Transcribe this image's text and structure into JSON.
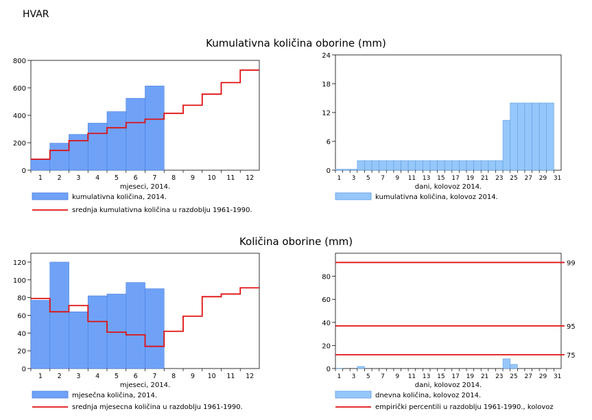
{
  "station": "HVAR",
  "section1_title": "Kumulativna količina oborine (mm)",
  "section2_title": "Količina oborine (mm)",
  "colors": {
    "monthly_bar": "#6fa2f7",
    "monthly_bar_edge": "#4a7ee0",
    "daily_bar": "#96c7fa",
    "daily_bar_edge": "#5e9de0",
    "reference_line": "#e01010"
  },
  "chart_data": [
    {
      "type": "bar",
      "xlabel": "mjeseci, 2014.",
      "x_ticks": [
        1,
        2,
        3,
        4,
        5,
        6,
        7,
        8,
        9,
        10,
        11,
        12
      ],
      "ylim": [
        0,
        800
      ],
      "y_ticks": [
        0,
        200,
        400,
        600,
        800
      ],
      "series": [
        {
          "name": "kumulativna količina, 2014.",
          "kind": "bar",
          "categories": [
            1,
            2,
            3,
            4,
            5,
            6,
            7
          ],
          "values": [
            77,
            197,
            261,
            343,
            427,
            524,
            614
          ]
        },
        {
          "name": "srednja kumulativna količina u razdoblju 1961-1990.",
          "kind": "step",
          "categories": [
            1,
            2,
            3,
            4,
            5,
            6,
            7,
            8,
            9,
            10,
            11,
            12
          ],
          "values": [
            80,
            144,
            215,
            268,
            309,
            347,
            372,
            414,
            473,
            554,
            638,
            729
          ]
        }
      ]
    },
    {
      "type": "bar",
      "xlabel": "dani, kolovoz 2014.",
      "x_ticks": [
        1,
        3,
        5,
        7,
        9,
        11,
        13,
        15,
        17,
        19,
        21,
        23,
        25,
        27,
        29,
        31
      ],
      "ylim": [
        0,
        24
      ],
      "y_ticks": [
        0,
        6,
        12,
        18,
        24
      ],
      "series": [
        {
          "name": "kumulativna količina, kolovoz 2014.",
          "kind": "bar",
          "categories": [
            1,
            2,
            3,
            4,
            5,
            6,
            7,
            8,
            9,
            10,
            11,
            12,
            13,
            14,
            15,
            16,
            17,
            18,
            19,
            20,
            21,
            22,
            23,
            24,
            25,
            26,
            27,
            28,
            29,
            30
          ],
          "values": [
            0.2,
            0.2,
            0.2,
            2,
            2,
            2,
            2,
            2,
            2,
            2,
            2,
            2,
            2,
            2,
            2,
            2,
            2,
            2,
            2,
            2,
            2,
            2,
            2,
            10.4,
            14,
            14,
            14,
            14,
            14,
            14
          ]
        }
      ]
    },
    {
      "type": "bar",
      "xlabel": "mjeseci, 2014.",
      "x_ticks": [
        1,
        2,
        3,
        4,
        5,
        6,
        7,
        8,
        9,
        10,
        11,
        12
      ],
      "ylim": [
        0,
        130
      ],
      "y_ticks": [
        0,
        20,
        40,
        60,
        80,
        100,
        120
      ],
      "series": [
        {
          "name": "mjesečna količina, 2014.",
          "kind": "bar",
          "categories": [
            1,
            2,
            3,
            4,
            5,
            6,
            7
          ],
          "values": [
            77,
            120,
            64,
            82,
            84,
            97,
            90
          ]
        },
        {
          "name": "srednja mjesecna količina u razdoblju 1961-1990.",
          "kind": "step",
          "categories": [
            1,
            2,
            3,
            4,
            5,
            6,
            7,
            8,
            9,
            10,
            11,
            12
          ],
          "values": [
            79,
            64,
            71,
            53,
            41,
            38,
            25,
            42,
            59,
            81,
            84,
            91
          ]
        }
      ]
    },
    {
      "type": "bar",
      "xlabel": "dani, kolovoz 2014.",
      "x_ticks": [
        1,
        3,
        5,
        7,
        9,
        11,
        13,
        15,
        17,
        19,
        21,
        23,
        25,
        27,
        29,
        31
      ],
      "ylim": [
        0,
        100
      ],
      "y_ticks": [
        0,
        20,
        40,
        60,
        80
      ],
      "series": [
        {
          "name": "dnevna količina, kolovoz 2014.",
          "kind": "bar",
          "categories": [
            1,
            4,
            24,
            25
          ],
          "values": [
            0.2,
            1.8,
            8.4,
            3.6
          ]
        },
        {
          "name": "empirički percentili u razdoblju 1961-1990., kolovoz",
          "kind": "hline",
          "values": [
            12,
            37,
            92
          ],
          "labels": [
            "75",
            "95",
            "99"
          ]
        }
      ]
    }
  ]
}
